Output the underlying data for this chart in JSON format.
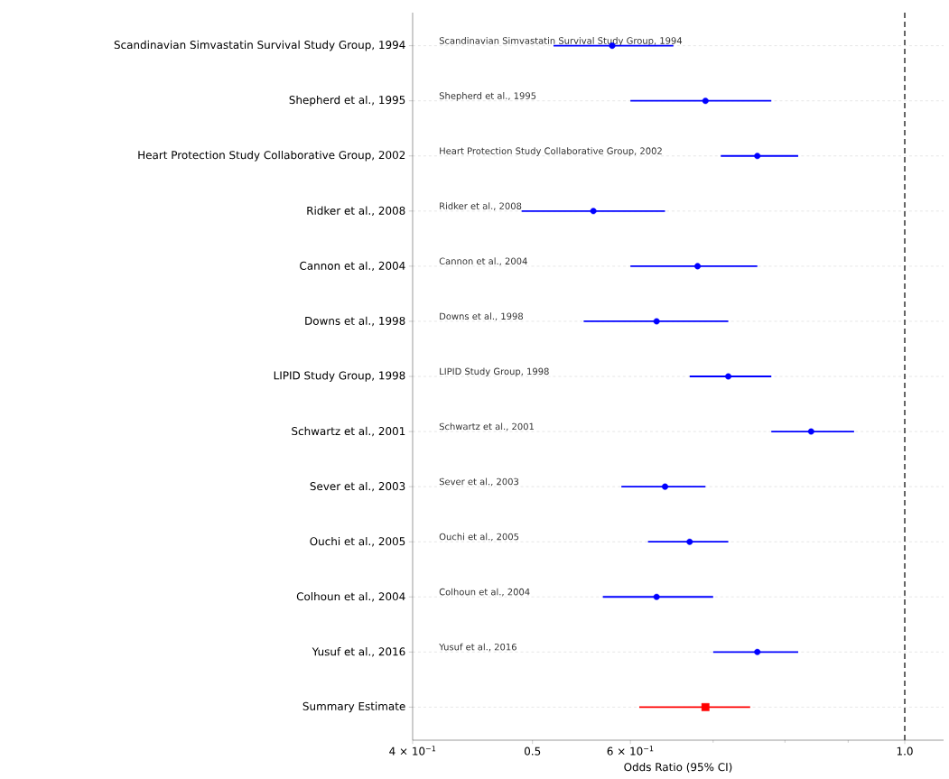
{
  "chart_data": {
    "type": "scatter",
    "orientation": "horizontal",
    "xlabel": "Odds Ratio (95% CI)",
    "categories": [
      "Scandinavian Simvastatin Survival Study Group, 1994",
      "Shepherd et al., 1995",
      "Heart Protection Study Collaborative Group, 2002",
      "Ridker et al., 2008",
      "Cannon et al., 2004",
      "Downs et al., 1998",
      "LIPID Study Group, 1998",
      "Schwartz et al., 2001",
      "Sever et al., 2003",
      "Ouchi et al., 2005",
      "Colhoun et al., 2004",
      "Yusuf et al., 2016",
      "Summary Estimate"
    ],
    "series": [
      {
        "color": "#0000ff",
        "marker": "circle",
        "values": [
          0.58,
          0.69,
          0.76,
          0.56,
          0.68,
          0.63,
          0.72,
          0.84,
          0.64,
          0.67,
          0.63,
          0.76,
          null
        ],
        "errors": [
          [
            0.52,
            0.65
          ],
          [
            0.6,
            0.78
          ],
          [
            0.71,
            0.82
          ],
          [
            0.49,
            0.64
          ],
          [
            0.6,
            0.76
          ],
          [
            0.55,
            0.72
          ],
          [
            0.67,
            0.78
          ],
          [
            0.78,
            0.91
          ],
          [
            0.59,
            0.69
          ],
          [
            0.62,
            0.72
          ],
          [
            0.57,
            0.7
          ],
          [
            0.7,
            0.82
          ],
          null
        ]
      },
      {
        "color": "#ff0000",
        "marker": "square",
        "values": [
          null,
          null,
          null,
          null,
          null,
          null,
          null,
          null,
          null,
          null,
          null,
          null,
          0.69
        ],
        "errors": [
          null,
          null,
          null,
          null,
          null,
          null,
          null,
          null,
          null,
          null,
          null,
          null,
          [
            0.61,
            0.75
          ]
        ]
      }
    ],
    "log": "x",
    "xlim": [
      0.4,
      1.075
    ],
    "xticks": [
      {
        "value": 0.4,
        "label": "4 × 10$^{−1}$"
      },
      0.5,
      {
        "value": 0.6,
        "label": "6 × 10$^{−1}$"
      },
      {
        "value": 0.7,
        "label": null
      },
      {
        "value": 0.8,
        "label": null
      },
      {
        "value": 0.9,
        "label": null
      },
      {
        "value": 1.0,
        "label": "1.0"
      }
    ],
    "grid": "y",
    "ref_lines": [
      {
        "axis": "x",
        "value": 1.0,
        "color": "#333333",
        "line_style": "dashed"
      }
    ],
    "annotations": [
      "Scandinavian Simvastatin Survival Study Group, 1994",
      "Shepherd et al., 1995",
      "Heart Protection Study Collaborative Group, 2002",
      "Ridker et al., 2008",
      "Cannon et al., 2004",
      "Downs et al., 1998",
      "LIPID Study Group, 1998",
      "Schwartz et al., 2001",
      "Sever et al., 2003",
      "Ouchi et al., 2005",
      "Colhoun et al., 2004",
      "Yusuf et al., 2016"
    ]
  }
}
